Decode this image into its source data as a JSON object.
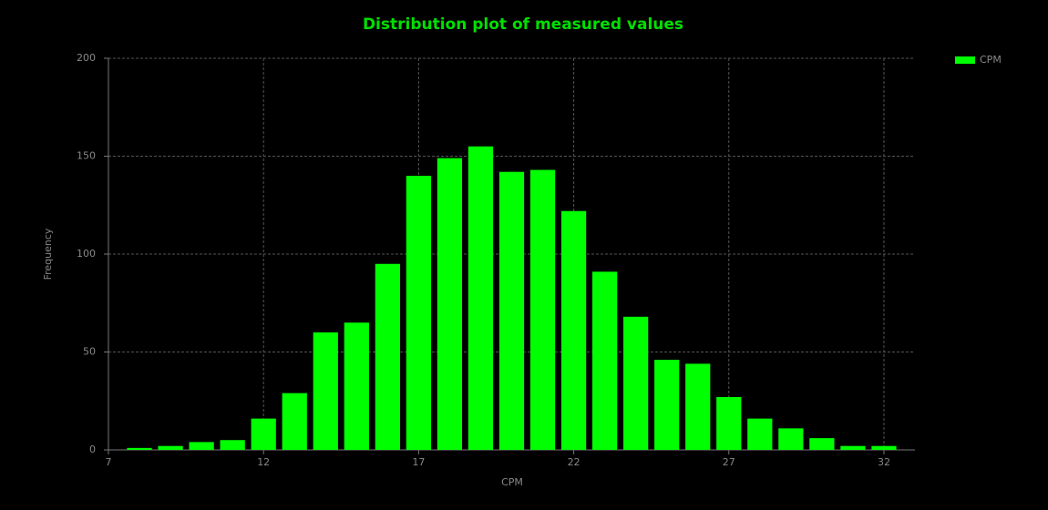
{
  "chart_data": {
    "type": "histogram",
    "title": "Distribution plot of measured values",
    "x_label": "CPM",
    "y_label": "Frequency",
    "bins": [
      7.5,
      8.5,
      9.5,
      10.5,
      11.5,
      12.5,
      13.5,
      14.5,
      15.5,
      16.5,
      17.5,
      18.5,
      19.5,
      20.5,
      21.5,
      22.5,
      23.5,
      24.5,
      25.5,
      26.5,
      27.5,
      28.5,
      29.5,
      30.5,
      31.5,
      32.5
    ],
    "series": [
      {
        "name": "CPM",
        "color": "#00ff00",
        "values": [
          1,
          2,
          4,
          5,
          16,
          29,
          60,
          65,
          95,
          140,
          149,
          155,
          142,
          143,
          122,
          91,
          68,
          46,
          44,
          27,
          16,
          11,
          6,
          2,
          2
        ]
      }
    ],
    "xlim": [
      7,
      33
    ],
    "xticks": [
      7,
      12,
      17,
      22,
      27,
      32
    ],
    "ylim": [
      0,
      200
    ],
    "yticks": [
      0,
      50,
      100,
      150,
      200
    ],
    "grid": true,
    "legend": "top-right"
  }
}
